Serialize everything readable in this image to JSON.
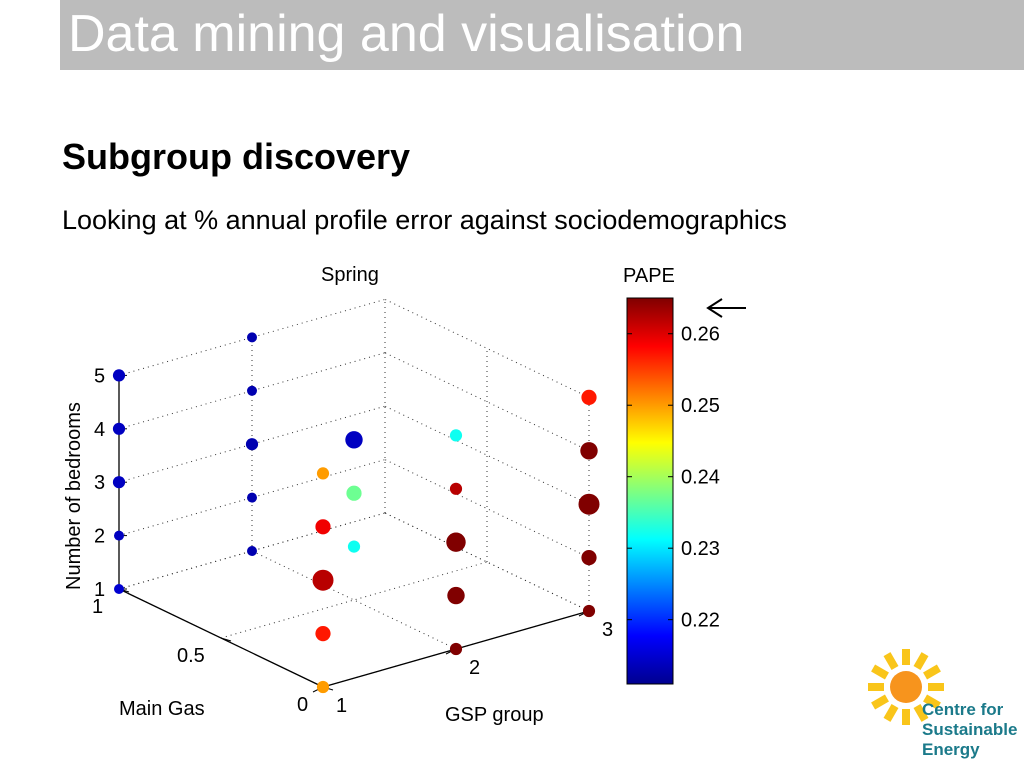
{
  "slide": {
    "title": "Data mining and visualisation",
    "heading": "Subgroup discovery",
    "subtitle": "Looking at % annual profile error against sociodemographics"
  },
  "logo": {
    "line1": "Centre for",
    "line2": "Sustainable",
    "line3": "Energy",
    "accent": "#1b7a8a",
    "sun": "#f7941d",
    "rays": "#f9c51a"
  },
  "chart_data": {
    "type": "scatter",
    "title": "Spring",
    "axes": {
      "x": {
        "label": "GSP group",
        "range": [
          1,
          3
        ],
        "ticks": [
          "1",
          "2",
          "3"
        ]
      },
      "y": {
        "label": "Main Gas",
        "range": [
          0,
          1
        ],
        "ticks": [
          "0",
          "0.5",
          "1"
        ]
      },
      "z": {
        "label": "Number of bedrooms",
        "range": [
          1,
          5
        ],
        "ticks": [
          "1",
          "2",
          "3",
          "4",
          "5"
        ]
      }
    },
    "colorbar": {
      "label": "PAPE",
      "range": [
        0.211,
        0.265
      ],
      "ticks": [
        "0.22",
        "0.23",
        "0.24",
        "0.25",
        "0.26"
      ],
      "marker": "arrow"
    },
    "grid": true,
    "points": [
      {
        "gsp": 1,
        "gas": 0,
        "bedrooms": 1,
        "pape": 0.25,
        "size": 1
      },
      {
        "gsp": 1,
        "gas": 0,
        "bedrooms": 2,
        "pape": 0.257,
        "size": 2
      },
      {
        "gsp": 1,
        "gas": 0,
        "bedrooms": 3,
        "pape": 0.262,
        "size": 5
      },
      {
        "gsp": 1,
        "gas": 0,
        "bedrooms": 4,
        "pape": 0.259,
        "size": 2
      },
      {
        "gsp": 1,
        "gas": 0,
        "bedrooms": 5,
        "pape": 0.25,
        "size": 1
      },
      {
        "gsp": 1,
        "gas": 1,
        "bedrooms": 1,
        "pape": 0.215,
        "size": 0.5
      },
      {
        "gsp": 1,
        "gas": 1,
        "bedrooms": 2,
        "pape": 0.214,
        "size": 0.5
      },
      {
        "gsp": 1,
        "gas": 1,
        "bedrooms": 3,
        "pape": 0.214,
        "size": 1
      },
      {
        "gsp": 1,
        "gas": 1,
        "bedrooms": 4,
        "pape": 0.214,
        "size": 1
      },
      {
        "gsp": 1,
        "gas": 1,
        "bedrooms": 5,
        "pape": 0.214,
        "size": 1
      },
      {
        "gsp": 2,
        "gas": 0,
        "bedrooms": 1,
        "pape": 0.265,
        "size": 1
      },
      {
        "gsp": 2,
        "gas": 0,
        "bedrooms": 2,
        "pape": 0.265,
        "size": 3
      },
      {
        "gsp": 2,
        "gas": 0,
        "bedrooms": 3,
        "pape": 0.265,
        "size": 4
      },
      {
        "gsp": 2,
        "gas": 0,
        "bedrooms": 4,
        "pape": 0.262,
        "size": 1
      },
      {
        "gsp": 2,
        "gas": 0,
        "bedrooms": 5,
        "pape": 0.232,
        "size": 1
      },
      {
        "gsp": 2,
        "gas": 1,
        "bedrooms": 1,
        "pape": 0.213,
        "size": 0.5
      },
      {
        "gsp": 2,
        "gas": 1,
        "bedrooms": 2,
        "pape": 0.213,
        "size": 0.5
      },
      {
        "gsp": 2,
        "gas": 1,
        "bedrooms": 3,
        "pape": 0.213,
        "size": 1
      },
      {
        "gsp": 2,
        "gas": 1,
        "bedrooms": 4,
        "pape": 0.213,
        "size": 0.5
      },
      {
        "gsp": 2,
        "gas": 1,
        "bedrooms": 5,
        "pape": 0.213,
        "size": 0.5
      },
      {
        "gsp": 2,
        "gas": 0.5,
        "bedrooms": 2,
        "pape": 0.232,
        "size": 1
      },
      {
        "gsp": 2,
        "gas": 0.5,
        "bedrooms": 3,
        "pape": 0.237,
        "size": 2
      },
      {
        "gsp": 2,
        "gas": 0.5,
        "bedrooms": 4,
        "pape": 0.214,
        "size": 3
      },
      {
        "gsp": 3,
        "gas": 0,
        "bedrooms": 1,
        "pape": 0.265,
        "size": 1
      },
      {
        "gsp": 3,
        "gas": 0,
        "bedrooms": 2,
        "pape": 0.265,
        "size": 2
      },
      {
        "gsp": 3,
        "gas": 0,
        "bedrooms": 3,
        "pape": 0.265,
        "size": 5
      },
      {
        "gsp": 3,
        "gas": 0,
        "bedrooms": 4,
        "pape": 0.265,
        "size": 3
      },
      {
        "gsp": 3,
        "gas": 0,
        "bedrooms": 5,
        "pape": 0.257,
        "size": 2
      }
    ]
  }
}
